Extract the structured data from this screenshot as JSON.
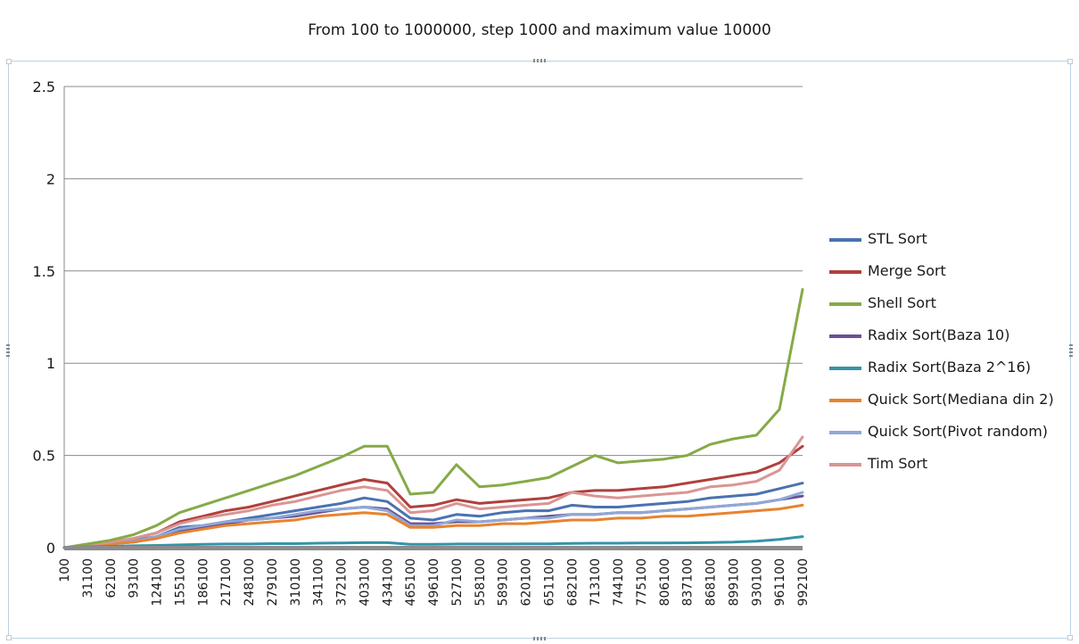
{
  "chart_data": {
    "type": "line",
    "title": "From 100 to 1000000, step 1000 and maximum value 10000",
    "xlabel": "",
    "ylabel": "",
    "ylim": [
      0,
      2.5
    ],
    "yticks": [
      "0",
      "0.5",
      "1",
      "1.5",
      "2",
      "2.5"
    ],
    "grid": true,
    "legend_position": "right",
    "x_tick_labels": [
      "100",
      "31100",
      "62100",
      "93100",
      "124100",
      "155100",
      "186100",
      "217100",
      "248100",
      "279100",
      "310100",
      "341100",
      "372100",
      "403100",
      "434100",
      "465100",
      "496100",
      "527100",
      "558100",
      "589100",
      "620100",
      "651100",
      "682100",
      "713100",
      "744100",
      "775100",
      "806100",
      "837100",
      "868100",
      "899100",
      "930100",
      "961100",
      "992100"
    ],
    "x": [
      100,
      31100,
      62100,
      93100,
      124100,
      155100,
      186100,
      217100,
      248100,
      279100,
      310100,
      341100,
      372100,
      403100,
      434100,
      465100,
      496100,
      527100,
      558100,
      589100,
      620100,
      651100,
      682100,
      713100,
      744100,
      775100,
      806100,
      837100,
      868100,
      899100,
      930100,
      961100,
      992100
    ],
    "series": [
      {
        "name": "STL Sort",
        "color": "#4a72b0",
        "values": [
          0.0,
          0.01,
          0.02,
          0.04,
          0.06,
          0.11,
          0.12,
          0.14,
          0.16,
          0.18,
          0.2,
          0.22,
          0.24,
          0.27,
          0.25,
          0.16,
          0.15,
          0.18,
          0.17,
          0.19,
          0.2,
          0.2,
          0.23,
          0.22,
          0.22,
          0.23,
          0.24,
          0.25,
          0.27,
          0.28,
          0.29,
          0.32,
          0.35
        ]
      },
      {
        "name": "Merge Sort",
        "color": "#b0403c",
        "values": [
          0.0,
          0.01,
          0.03,
          0.05,
          0.08,
          0.14,
          0.17,
          0.2,
          0.22,
          0.25,
          0.28,
          0.31,
          0.34,
          0.37,
          0.35,
          0.22,
          0.23,
          0.26,
          0.24,
          0.25,
          0.26,
          0.27,
          0.3,
          0.31,
          0.31,
          0.32,
          0.33,
          0.35,
          0.37,
          0.39,
          0.41,
          0.46,
          0.55
        ]
      },
      {
        "name": "Shell Sort",
        "color": "#86aa48",
        "values": [
          0.0,
          0.02,
          0.04,
          0.07,
          0.12,
          0.19,
          0.23,
          0.27,
          0.31,
          0.35,
          0.39,
          0.44,
          0.49,
          0.55,
          0.55,
          0.29,
          0.3,
          0.45,
          0.33,
          0.34,
          0.36,
          0.38,
          0.44,
          0.5,
          0.46,
          0.47,
          0.48,
          0.5,
          0.56,
          0.59,
          0.61,
          0.75,
          1.4
        ]
      },
      {
        "name": "Radix Sort(Baza 10)",
        "color": "#6a5096",
        "values": [
          0.0,
          0.01,
          0.02,
          0.03,
          0.05,
          0.09,
          0.11,
          0.13,
          0.15,
          0.16,
          0.17,
          0.19,
          0.21,
          0.22,
          0.21,
          0.13,
          0.13,
          0.14,
          0.14,
          0.15,
          0.16,
          0.17,
          0.18,
          0.18,
          0.19,
          0.19,
          0.2,
          0.21,
          0.22,
          0.23,
          0.24,
          0.26,
          0.28
        ]
      },
      {
        "name": "Radix Sort(Baza 2^16)",
        "color": "#3493a8",
        "values": [
          0.0,
          0.005,
          0.007,
          0.01,
          0.012,
          0.015,
          0.018,
          0.02,
          0.02,
          0.022,
          0.022,
          0.024,
          0.025,
          0.027,
          0.027,
          0.018,
          0.018,
          0.02,
          0.02,
          0.02,
          0.021,
          0.021,
          0.023,
          0.024,
          0.024,
          0.025,
          0.025,
          0.026,
          0.028,
          0.03,
          0.035,
          0.045,
          0.06
        ]
      },
      {
        "name": "Quick Sort(Mediana din 2)",
        "color": "#e8832e",
        "values": [
          0.0,
          0.01,
          0.02,
          0.03,
          0.05,
          0.08,
          0.1,
          0.12,
          0.13,
          0.14,
          0.15,
          0.17,
          0.18,
          0.19,
          0.18,
          0.11,
          0.11,
          0.12,
          0.12,
          0.13,
          0.13,
          0.14,
          0.15,
          0.15,
          0.16,
          0.16,
          0.17,
          0.17,
          0.18,
          0.19,
          0.2,
          0.21,
          0.23
        ]
      },
      {
        "name": "Quick Sort(Pivot random)",
        "color": "#8fa8d6",
        "values": [
          0.0,
          0.01,
          0.02,
          0.035,
          0.06,
          0.1,
          0.12,
          0.14,
          0.15,
          0.16,
          0.18,
          0.2,
          0.21,
          0.22,
          0.2,
          0.12,
          0.12,
          0.15,
          0.14,
          0.15,
          0.16,
          0.16,
          0.18,
          0.18,
          0.19,
          0.19,
          0.2,
          0.21,
          0.22,
          0.23,
          0.24,
          0.26,
          0.3
        ]
      },
      {
        "name": "Tim Sort",
        "color": "#d99594",
        "values": [
          0.0,
          0.01,
          0.03,
          0.05,
          0.08,
          0.13,
          0.16,
          0.18,
          0.2,
          0.23,
          0.25,
          0.28,
          0.31,
          0.33,
          0.31,
          0.19,
          0.2,
          0.24,
          0.21,
          0.22,
          0.23,
          0.24,
          0.3,
          0.28,
          0.27,
          0.28,
          0.29,
          0.3,
          0.33,
          0.34,
          0.36,
          0.42,
          0.6
        ]
      }
    ]
  }
}
